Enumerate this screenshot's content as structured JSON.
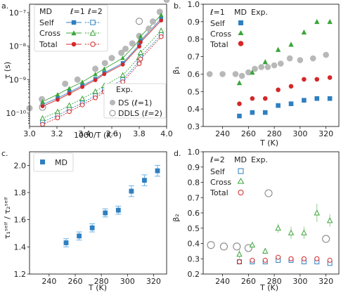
{
  "colors": {
    "blue": "#2f7fc1",
    "green": "#3aa53a",
    "red": "#d62728",
    "gray": "#b8b8b8",
    "darkgray": "#8a8a8a"
  },
  "chart_data": [
    {
      "panel_label": "a.",
      "type": "scatter",
      "xlabel": "1000/T (K⁻¹)",
      "ylabel": "τ (s)",
      "xlim": [
        3.0,
        4.0
      ],
      "ylog": true,
      "ylim_exp": [
        -10.4,
        -6.75
      ],
      "xticks": [
        3.0,
        3.2,
        3.4,
        3.6,
        3.8,
        4.0
      ],
      "xtick_labels": [
        "3.0",
        "3.2",
        "3.4",
        "3.6",
        "3.8",
        "4.0"
      ],
      "yticks_exp": [
        -10,
        -9,
        -8,
        -7
      ],
      "ytick_labels": [
        "10⁻¹⁰",
        "10⁻⁹",
        "10⁻⁸",
        "10⁻⁷"
      ],
      "legend_md": {
        "header": "MD",
        "col1": "ℓ=1",
        "col2": "ℓ=2",
        "rows": [
          "Self",
          "Cross",
          "Total"
        ]
      },
      "legend_exp": {
        "header": "Exp.",
        "rows": [
          "DS (ℓ=1)",
          "DDLS (ℓ=2)"
        ]
      },
      "x_md": [
        3.095,
        3.205,
        3.29,
        3.385,
        3.48,
        3.545,
        3.68,
        3.8,
        3.81,
        3.96
      ],
      "series": [
        {
          "name": "Self ℓ=1",
          "y": [
            1.8e-10,
            2.8e-10,
            4.2e-10,
            6.6e-10,
            1.05e-09,
            1.58e-09,
            3.1e-09,
            1.07e-08,
            1.45e-08,
            6.5e-08
          ]
        },
        {
          "name": "Self ℓ=2",
          "y": [
            5.5e-11,
            8.5e-11,
            1.3e-10,
            2e-10,
            3.3e-10,
            5e-10,
            1e-09,
            3.5e-09,
            4.8e-09,
            2.2e-08
          ]
        },
        {
          "name": "Cross ℓ=1",
          "y": [
            2.2e-10,
            3.6e-10,
            5.5e-10,
            8.5e-10,
            1.45e-09,
            2.1e-09,
            4.4e-09,
            1.45e-08,
            1.95e-08,
            8.5e-08
          ]
        },
        {
          "name": "Cross ℓ=2",
          "y": [
            7e-11,
            1.1e-10,
            1.7e-10,
            2.7e-10,
            4.4e-10,
            6.6e-10,
            1.35e-09,
            4.7e-09,
            6.4e-09,
            2.9e-08
          ]
        },
        {
          "name": "Total ℓ=1",
          "y": [
            1.6e-10,
            2.5e-10,
            3.8e-10,
            6e-10,
            9.6e-10,
            1.45e-09,
            2.8e-09,
            9.7e-09,
            1.3e-08,
            5.8e-08
          ]
        },
        {
          "name": "Total ℓ=2",
          "y": [
            4.6e-11,
            7.2e-11,
            1.1e-10,
            1.75e-10,
            2.85e-10,
            4.3e-10,
            8.6e-10,
            3e-09,
            4.1e-09,
            1.9e-08
          ]
        }
      ],
      "exp_ds": {
        "x": [
          3.0,
          3.09,
          3.26,
          3.35,
          3.48,
          3.55,
          3.6,
          3.67,
          3.7,
          3.75,
          3.8,
          3.87,
          3.9,
          3.95,
          4.0
        ],
        "y": [
          1.4e-10,
          2.6e-10,
          7.5e-10,
          1e-09,
          2.1e-09,
          3.1e-09,
          4.4e-09,
          6.3e-09,
          8.3e-09,
          1.2e-08,
          2e-08,
          3.3e-08,
          5.4e-08,
          1.05e-07,
          2.4e-07
        ]
      },
      "exp_ddls": {
        "x": [
          3.095,
          3.8
        ],
        "y": [
          1.5e-10,
          5.5e-08
        ]
      }
    },
    {
      "panel_label": "b.",
      "type": "scatter",
      "xlabel": "T (K)",
      "ylabel": "β₁",
      "xlim": [
        225,
        330
      ],
      "ylim": [
        0.3,
        1.0
      ],
      "xticks": [
        240,
        260,
        280,
        300,
        320
      ],
      "yticks": [
        0.3,
        0.4,
        0.5,
        0.6,
        0.7,
        0.8,
        0.9,
        1.0
      ],
      "legend": {
        "header": "ℓ=1",
        "col1": "MD",
        "col2": "Exp.",
        "rows": [
          "Self",
          "Cross",
          "Total"
        ]
      },
      "md_T": [
        253,
        263,
        273,
        283,
        293,
        303,
        313,
        323
      ],
      "series": [
        {
          "name": "Self",
          "y": [
            0.36,
            0.38,
            0.38,
            0.42,
            0.43,
            0.45,
            0.46,
            0.46
          ]
        },
        {
          "name": "Cross",
          "y": [
            0.55,
            0.61,
            0.67,
            0.74,
            0.77,
            0.84,
            0.9,
            0.9
          ]
        },
        {
          "name": "Total",
          "y": [
            0.43,
            0.46,
            0.46,
            0.51,
            0.53,
            0.57,
            0.57,
            0.58
          ]
        }
      ],
      "exp": {
        "T": [
          230,
          240,
          250,
          255,
          260,
          265,
          270,
          275,
          280,
          285,
          292,
          300,
          310,
          320
        ],
        "y": [
          0.6,
          0.6,
          0.6,
          0.59,
          0.61,
          0.63,
          0.64,
          0.64,
          0.65,
          0.66,
          0.69,
          0.68,
          0.69,
          0.71
        ]
      }
    },
    {
      "panel_label": "c.",
      "type": "scatter",
      "xlabel": "T (K)",
      "ylabel": "τ₁ˢᵉˡᶠ / τ₂ˢᵉˡᶠ",
      "xlim": [
        225,
        330
      ],
      "ylim": [
        1.2,
        2.1
      ],
      "xticks": [
        240,
        260,
        280,
        300,
        320
      ],
      "yticks": [
        1.2,
        1.4,
        1.6,
        1.8,
        2.0
      ],
      "legend": [
        "MD"
      ],
      "T": [
        253,
        263,
        273,
        283,
        293,
        303,
        313,
        323
      ],
      "values": [
        1.43,
        1.48,
        1.54,
        1.65,
        1.67,
        1.81,
        1.89,
        1.96
      ],
      "errors": [
        0.03,
        0.03,
        0.03,
        0.03,
        0.03,
        0.04,
        0.04,
        0.04
      ]
    },
    {
      "panel_label": "d.",
      "type": "scatter",
      "xlabel": "T (K)",
      "ylabel": "β₂",
      "xlim": [
        225,
        330
      ],
      "ylim": [
        0.2,
        1.0
      ],
      "xticks": [
        240,
        260,
        280,
        300,
        320
      ],
      "yticks": [
        0.2,
        0.3,
        0.4,
        0.5,
        0.6,
        0.7,
        0.8,
        0.9,
        1.0
      ],
      "legend": {
        "header": "ℓ=2",
        "col1": "MD",
        "col2": "Exp.",
        "rows": [
          "Self",
          "Cross",
          "Total"
        ]
      },
      "md_T": [
        253,
        263,
        273,
        283,
        293,
        303,
        313,
        323
      ],
      "series": [
        {
          "name": "Self",
          "y": [
            0.28,
            0.28,
            0.28,
            0.29,
            0.29,
            0.28,
            0.28,
            0.27
          ],
          "err": [
            0,
            0,
            0,
            0,
            0,
            0,
            0,
            0
          ]
        },
        {
          "name": "Cross",
          "y": [
            0.33,
            0.39,
            0.35,
            0.5,
            0.47,
            0.47,
            0.6,
            0.55
          ],
          "err": [
            0.03,
            0.02,
            0.02,
            0.03,
            0.04,
            0.04,
            0.06,
            0.04
          ]
        },
        {
          "name": "Total",
          "y": [
            0.28,
            0.29,
            0.29,
            0.31,
            0.3,
            0.3,
            0.3,
            0.29
          ],
          "err": [
            0,
            0,
            0,
            0,
            0,
            0,
            0,
            0
          ]
        }
      ],
      "exp": {
        "T": [
          231,
          241,
          251,
          260,
          320
        ],
        "y": [
          0.39,
          0.38,
          0.38,
          0.37,
          0.43
        ]
      }
    }
  ]
}
